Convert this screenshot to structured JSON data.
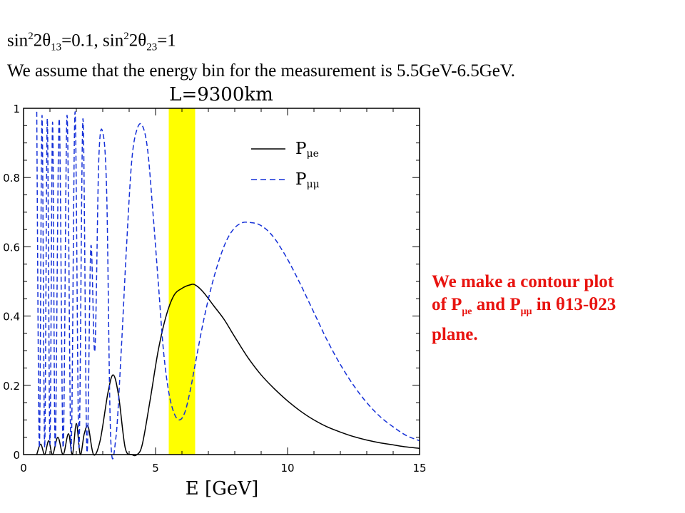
{
  "header": {
    "line1_a": "sin",
    "line1_sup1": "2",
    "line1_b": "2θ",
    "line1_sub1": "13",
    "line1_c": "=0.1,",
    "line1_d": " sin",
    "line1_sup2": "2",
    "line1_e": "2θ",
    "line1_sub2": "23",
    "line1_f": "=1",
    "line2": "We assume that the energy bin for the measurement is 5.5GeV-6.5GeV."
  },
  "note": {
    "line1": "We make a contour plot",
    "line2_a": "of P",
    "line2_sub1": "μe",
    "line2_b": " and P",
    "line2_sub2": "μμ",
    "line2_c": " in θ13-θ23",
    "line3": "plane."
  },
  "chart_data": {
    "type": "line",
    "title": "L=9300km",
    "xlabel": "E [GeV]",
    "ylabel": "",
    "xlim": [
      0,
      15
    ],
    "ylim": [
      0,
      1
    ],
    "xticks": [
      0,
      5,
      10,
      15
    ],
    "xtick_labels": [
      "0",
      "5",
      "10",
      "15"
    ],
    "yticks": [
      0,
      0.2,
      0.4,
      0.6,
      0.8,
      1
    ],
    "ytick_labels": [
      "0",
      "0.2",
      "0.4",
      "0.6",
      "0.8",
      "1"
    ],
    "grid": false,
    "legend_position": "top-right",
    "highlight_band": {
      "x0": 5.5,
      "x1": 6.5,
      "color": "#ffff00"
    },
    "series": [
      {
        "name": "Pμe",
        "name_main": "P",
        "name_sub": "μe",
        "style": "solid",
        "color": "#000000",
        "x": [
          0.5,
          0.65,
          0.8,
          0.95,
          1.1,
          1.3,
          1.5,
          1.7,
          1.85,
          2.0,
          2.15,
          2.3,
          2.45,
          2.65,
          2.9,
          3.2,
          3.4,
          3.6,
          3.85,
          4.1,
          4.3,
          4.5,
          4.8,
          5.1,
          5.4,
          5.7,
          6.0,
          6.3,
          6.5,
          6.8,
          7.2,
          7.6,
          8.0,
          8.5,
          9.0,
          9.5,
          10.0,
          10.5,
          11.0,
          11.5,
          12.0,
          12.5,
          13.0,
          13.5,
          14.0,
          14.5,
          15.0
        ],
        "y": [
          0.0,
          0.03,
          0.0,
          0.04,
          0.0,
          0.05,
          0.0,
          0.06,
          0.0,
          0.09,
          0.0,
          0.06,
          0.08,
          0.0,
          0.04,
          0.18,
          0.23,
          0.17,
          0.02,
          0.0,
          0.0,
          0.03,
          0.16,
          0.3,
          0.4,
          0.46,
          0.48,
          0.49,
          0.49,
          0.47,
          0.43,
          0.39,
          0.34,
          0.28,
          0.23,
          0.19,
          0.155,
          0.125,
          0.1,
          0.08,
          0.065,
          0.052,
          0.042,
          0.034,
          0.028,
          0.022,
          0.018
        ]
      },
      {
        "name": "Pμμ",
        "name_main": "P",
        "name_sub": "μμ",
        "style": "dashed",
        "color": "#1530d8",
        "x": [
          0.5,
          0.6,
          0.7,
          0.8,
          0.9,
          1.0,
          1.1,
          1.2,
          1.35,
          1.5,
          1.65,
          1.8,
          1.95,
          2.1,
          2.25,
          2.4,
          2.55,
          2.7,
          2.85,
          3.0,
          3.15,
          3.3,
          3.5,
          3.7,
          3.9,
          4.1,
          4.3,
          4.5,
          4.7,
          4.9,
          5.1,
          5.3,
          5.5,
          5.7,
          5.9,
          6.1,
          6.3,
          6.5,
          6.8,
          7.1,
          7.4,
          7.7,
          8.0,
          8.3,
          8.6,
          8.9,
          9.2,
          9.5,
          9.8,
          10.1,
          10.5,
          11.0,
          11.5,
          12.0,
          12.5,
          13.0,
          13.5,
          14.0,
          14.5,
          15.0
        ],
        "y": [
          0.99,
          0.02,
          0.98,
          0.02,
          0.97,
          0.03,
          0.96,
          0.02,
          0.97,
          0.02,
          0.98,
          0.01,
          0.99,
          0.02,
          0.97,
          0.01,
          0.6,
          0.3,
          0.85,
          0.93,
          0.75,
          0.05,
          0.05,
          0.3,
          0.6,
          0.85,
          0.94,
          0.95,
          0.88,
          0.7,
          0.5,
          0.3,
          0.18,
          0.12,
          0.1,
          0.12,
          0.18,
          0.26,
          0.38,
          0.48,
          0.56,
          0.62,
          0.655,
          0.67,
          0.67,
          0.665,
          0.65,
          0.625,
          0.59,
          0.55,
          0.49,
          0.41,
          0.33,
          0.26,
          0.2,
          0.15,
          0.11,
          0.08,
          0.055,
          0.04
        ]
      }
    ]
  }
}
